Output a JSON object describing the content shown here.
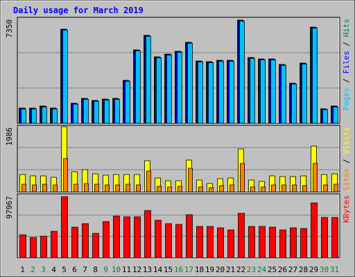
{
  "chart_data": {
    "type": "bar",
    "title": "Daily usage for March 2019",
    "categories": [
      "1",
      "2",
      "3",
      "4",
      "5",
      "6",
      "7",
      "8",
      "9",
      "10",
      "11",
      "12",
      "13",
      "14",
      "15",
      "16",
      "17",
      "18",
      "19",
      "20",
      "21",
      "22",
      "23",
      "24",
      "25",
      "26",
      "27",
      "28",
      "29",
      "30",
      "31"
    ],
    "category_colors": [
      "#000000",
      "#008040",
      "#008040",
      "#000000",
      "#000000",
      "#000000",
      "#000000",
      "#000000",
      "#008040",
      "#008040",
      "#000000",
      "#000000",
      "#000000",
      "#000000",
      "#000000",
      "#008040",
      "#008040",
      "#000000",
      "#000000",
      "#000000",
      "#000000",
      "#000000",
      "#008040",
      "#008040",
      "#000000",
      "#000000",
      "#000000",
      "#000000",
      "#000000",
      "#008040",
      "#008040"
    ],
    "separator": " / ",
    "panels": [
      {
        "ylim": [
          0,
          7350
        ],
        "yticks": [
          7350
        ],
        "series": [
          {
            "name": "Hits",
            "color": "#008040",
            "values": [
              1085,
              1085,
              1233,
              1085,
              6706,
              1430,
              1775,
              1627,
              1726,
              1775,
              3057,
              5226,
              6262,
              4733,
              4930,
              5128,
              5769,
              4437,
              4388,
              4487,
              4487,
              7350,
              4684,
              4585,
              4585,
              4191,
              2860,
              4290,
              6853,
              1035,
              1233
            ]
          },
          {
            "name": "Files",
            "color": "#0000ff",
            "values": [
              1055,
              1055,
              1203,
              1055,
              6676,
              1400,
              1745,
              1597,
              1696,
              1745,
              3027,
              5196,
              6232,
              4703,
              4900,
              5098,
              5739,
              4407,
              4358,
              4457,
              4457,
              7320,
              4654,
              4555,
              4555,
              4161,
              2830,
              4260,
              6823,
              1005,
              1203
            ]
          },
          {
            "name": "Pages",
            "color": "#00c0ff",
            "values": [
              1015,
              1015,
              1163,
              1015,
              6636,
              1360,
              1705,
              1557,
              1656,
              1705,
              2987,
              5156,
              6192,
              4663,
              4860,
              5058,
              5699,
              4367,
              4318,
              4417,
              4417,
              7280,
              4614,
              4515,
              4515,
              4121,
              2790,
              4220,
              6783,
              965,
              1163
            ]
          }
        ]
      },
      {
        "ylim": [
          0,
          1986
        ],
        "yticks": [
          1986
        ],
        "series": [
          {
            "name": "Visits",
            "color": "#ffff00",
            "values": [
              528,
              486,
              486,
              443,
              1986,
              612,
              676,
              549,
              507,
              528,
              528,
              528,
              950,
              422,
              338,
              338,
              971,
              359,
              253,
              401,
              422,
              1309,
              359,
              317,
              486,
              465,
              465,
              486,
              1394,
              528,
              549
            ]
          },
          {
            "name": "Sites",
            "color": "#ff8000",
            "values": [
              232,
              211,
              232,
              211,
              1014,
              232,
              253,
              232,
              211,
              211,
              232,
              211,
              634,
              169,
              148,
              169,
              718,
              148,
              127,
              190,
              211,
              866,
              148,
              148,
              211,
              211,
              211,
              190,
              866,
              211,
              232
            ]
          }
        ]
      },
      {
        "ylim": [
          0,
          97967
        ],
        "yticks": [
          97967
        ],
        "series": [
          {
            "name": "KBytes",
            "color": "#ff0000",
            "values": [
              36729,
              32277,
              34503,
              42294,
              97967,
              48972,
              54537,
              38955,
              57876,
              66780,
              65667,
              65667,
              75684,
              60102,
              54537,
              53424,
              69006,
              50085,
              50085,
              47859,
              44520,
              71232,
              50085,
              50085,
              48972,
              44520,
              47859,
              46746,
              87927,
              64554,
              64554
            ]
          }
        ]
      }
    ]
  }
}
